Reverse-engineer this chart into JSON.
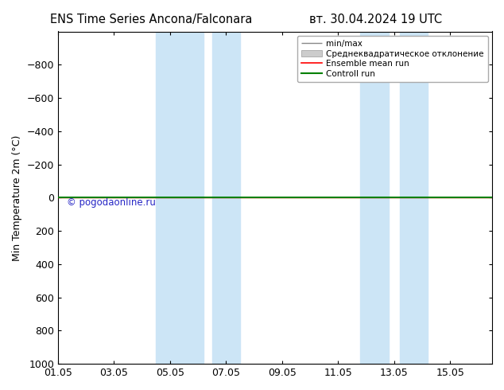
{
  "title_left": "ENS Time Series Ancona/Falconara",
  "title_right": "вт. 30.04.2024 19 UTC",
  "ylabel": "Min Temperature 2m (°C)",
  "ylim": [
    -1000,
    1000
  ],
  "yticks": [
    -800,
    -600,
    -400,
    -200,
    0,
    200,
    400,
    600,
    800,
    1000
  ],
  "xtick_labels": [
    "01.05",
    "03.05",
    "05.05",
    "07.05",
    "09.05",
    "11.05",
    "13.05",
    "15.05"
  ],
  "xtick_positions": [
    0,
    2,
    4,
    6,
    8,
    10,
    12,
    14
  ],
  "shade_regions": [
    [
      3.5,
      5.2
    ],
    [
      5.5,
      6.5
    ],
    [
      10.8,
      11.8
    ],
    [
      12.2,
      13.2
    ]
  ],
  "shade_color": "#cce5f6",
  "green_color": "#008000",
  "red_color": "#ff0000",
  "watermark": "© pogodaonline.ru",
  "watermark_color": "#0000bb",
  "legend_labels": [
    "min/max",
    "Среднеквадратическое отклонение",
    "Ensemble mean run",
    "Controll run"
  ],
  "background_color": "#ffffff",
  "font_size": 9,
  "title_font_size": 10.5
}
